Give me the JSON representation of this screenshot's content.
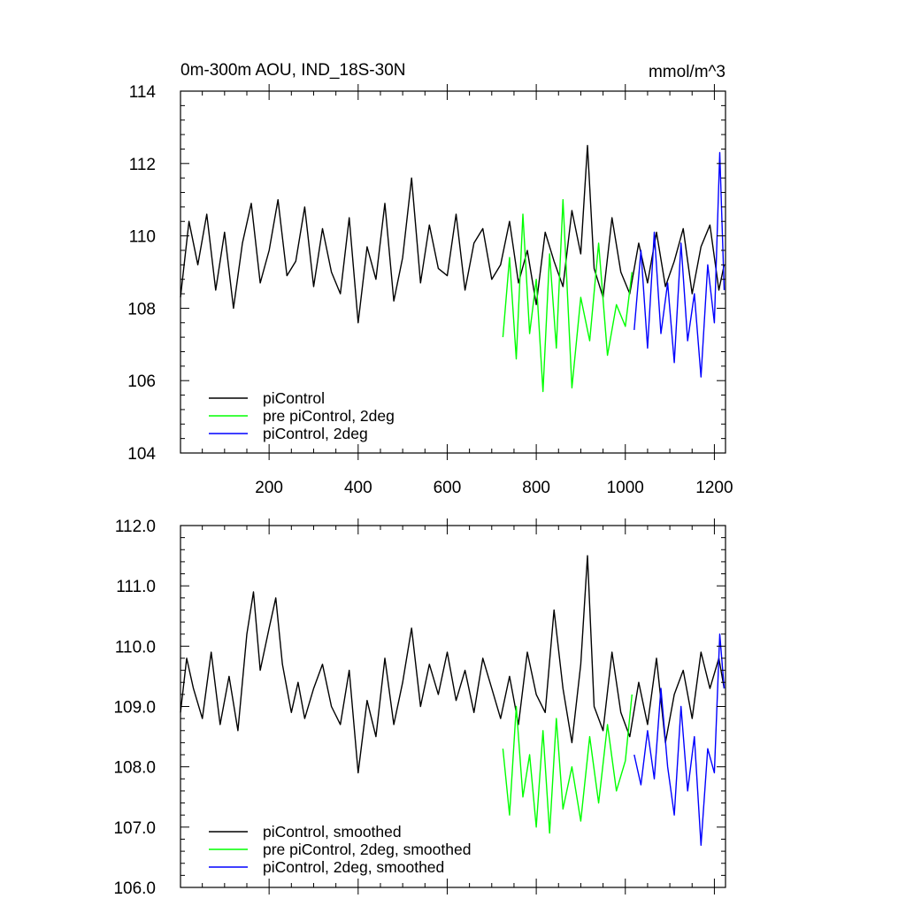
{
  "chart_data": [
    {
      "type": "line",
      "title": "0m-300m AOU, IND_18S-30N",
      "units": "mmol/m^3",
      "xlim": [
        1,
        1225
      ],
      "ylim": [
        104,
        114
      ],
      "x_ticks": [
        200,
        400,
        600,
        800,
        1000,
        1200
      ],
      "x_tick_labels": [
        "200",
        "400",
        "600",
        "800",
        "1000",
        "1200"
      ],
      "y_ticks": [
        104,
        106,
        108,
        110,
        112,
        114
      ],
      "y_tick_labels": [
        "104",
        "106",
        "108",
        "110",
        "112",
        "114"
      ],
      "legend_placement": "bottom-left",
      "series": [
        {
          "name": "piControl",
          "color": "#000000",
          "x": [
            1,
            20,
            40,
            60,
            80,
            100,
            120,
            140,
            160,
            180,
            200,
            220,
            240,
            260,
            280,
            300,
            320,
            340,
            360,
            380,
            400,
            420,
            440,
            460,
            480,
            500,
            520,
            540,
            560,
            580,
            600,
            620,
            640,
            660,
            680,
            700,
            720,
            740,
            760,
            780,
            800,
            820,
            840,
            860,
            880,
            900,
            915,
            930,
            950,
            970,
            990,
            1010,
            1030,
            1050,
            1070,
            1090,
            1110,
            1130,
            1150,
            1170,
            1190,
            1210,
            1222
          ],
          "values": [
            108.3,
            110.4,
            109.2,
            110.6,
            108.5,
            110.1,
            108.0,
            109.8,
            110.9,
            108.7,
            109.6,
            111.0,
            108.9,
            109.3,
            110.8,
            108.6,
            110.2,
            109.0,
            108.4,
            110.5,
            107.6,
            109.7,
            108.8,
            110.9,
            108.2,
            109.4,
            111.6,
            108.7,
            110.3,
            109.1,
            108.9,
            110.6,
            108.5,
            109.8,
            110.2,
            108.8,
            109.2,
            110.4,
            108.7,
            109.6,
            108.1,
            110.1,
            109.3,
            108.6,
            110.7,
            109.5,
            112.5,
            109.1,
            108.3,
            110.5,
            109.0,
            108.4,
            109.8,
            108.7,
            110.1,
            108.6,
            109.3,
            110.2,
            108.4,
            109.7,
            110.3,
            108.5,
            109.2
          ]
        },
        {
          "name": "pre piControl, 2deg",
          "color": "#00ff00",
          "x": [
            725,
            740,
            755,
            770,
            785,
            800,
            815,
            830,
            845,
            860,
            880,
            900,
            920,
            940,
            960,
            980,
            1000,
            1015
          ],
          "values": [
            107.2,
            109.4,
            106.6,
            110.6,
            107.3,
            108.8,
            105.7,
            109.5,
            106.9,
            111.0,
            105.8,
            108.3,
            107.1,
            109.8,
            106.7,
            108.1,
            107.5,
            109.0
          ]
        },
        {
          "name": "piControl, 2deg",
          "color": "#0000ff",
          "x": [
            1020,
            1035,
            1050,
            1065,
            1080,
            1095,
            1110,
            1125,
            1140,
            1155,
            1170,
            1185,
            1200,
            1212,
            1222
          ],
          "values": [
            107.4,
            109.6,
            106.9,
            110.1,
            107.3,
            108.7,
            106.5,
            109.8,
            107.1,
            108.4,
            106.1,
            109.2,
            107.6,
            112.3,
            108.5
          ]
        }
      ]
    },
    {
      "type": "line",
      "xlim": [
        1,
        1225
      ],
      "ylim": [
        106.0,
        112.0
      ],
      "x_ticks": [
        200,
        400,
        600,
        800,
        1000,
        1200
      ],
      "y_ticks": [
        106.0,
        107.0,
        108.0,
        109.0,
        110.0,
        111.0,
        112.0
      ],
      "y_tick_labels": [
        "106.0",
        "107.0",
        "108.0",
        "109.0",
        "110.0",
        "111.0",
        "112.0"
      ],
      "legend_placement": "bottom-left",
      "series": [
        {
          "name": "piControl, smoothed",
          "color": "#000000",
          "x": [
            1,
            15,
            30,
            50,
            70,
            90,
            110,
            130,
            150,
            165,
            180,
            200,
            215,
            230,
            250,
            265,
            280,
            300,
            320,
            340,
            360,
            380,
            400,
            420,
            440,
            460,
            480,
            500,
            520,
            540,
            560,
            580,
            600,
            620,
            640,
            660,
            680,
            700,
            720,
            740,
            760,
            780,
            800,
            820,
            840,
            860,
            880,
            900,
            915,
            930,
            950,
            970,
            990,
            1010,
            1030,
            1050,
            1070,
            1090,
            1110,
            1130,
            1150,
            1170,
            1190,
            1210,
            1222
          ],
          "values": [
            108.9,
            109.8,
            109.3,
            108.8,
            109.9,
            108.7,
            109.5,
            108.6,
            110.2,
            110.9,
            109.6,
            110.3,
            110.8,
            109.7,
            108.9,
            109.4,
            108.8,
            109.3,
            109.7,
            109.0,
            108.7,
            109.6,
            107.9,
            109.1,
            108.5,
            109.8,
            108.7,
            109.4,
            110.3,
            109.0,
            109.7,
            109.2,
            109.9,
            109.1,
            109.6,
            108.9,
            109.8,
            109.3,
            108.8,
            109.5,
            108.7,
            109.9,
            109.2,
            108.9,
            110.6,
            109.3,
            108.4,
            109.7,
            111.5,
            109.0,
            108.6,
            109.9,
            108.9,
            108.5,
            109.4,
            108.7,
            109.8,
            108.4,
            109.2,
            109.6,
            108.8,
            109.9,
            109.3,
            109.8,
            109.3
          ]
        },
        {
          "name": "pre piControl, 2deg, smoothed",
          "color": "#00ff00",
          "x": [
            725,
            740,
            755,
            770,
            785,
            800,
            815,
            830,
            845,
            860,
            880,
            900,
            920,
            940,
            960,
            980,
            1000,
            1015
          ],
          "values": [
            108.3,
            107.2,
            109.0,
            107.5,
            108.2,
            107.0,
            108.6,
            106.9,
            108.8,
            107.3,
            108.0,
            107.1,
            108.5,
            107.4,
            108.7,
            107.6,
            108.1,
            109.2
          ]
        },
        {
          "name": "piControl, 2deg, smoothed",
          "color": "#0000ff",
          "x": [
            1020,
            1035,
            1050,
            1065,
            1080,
            1095,
            1110,
            1125,
            1140,
            1155,
            1170,
            1185,
            1200,
            1212,
            1222
          ],
          "values": [
            108.2,
            107.7,
            108.6,
            107.8,
            109.3,
            108.0,
            107.2,
            109.0,
            107.6,
            108.5,
            106.7,
            108.3,
            107.9,
            110.2,
            109.3
          ]
        }
      ]
    }
  ]
}
